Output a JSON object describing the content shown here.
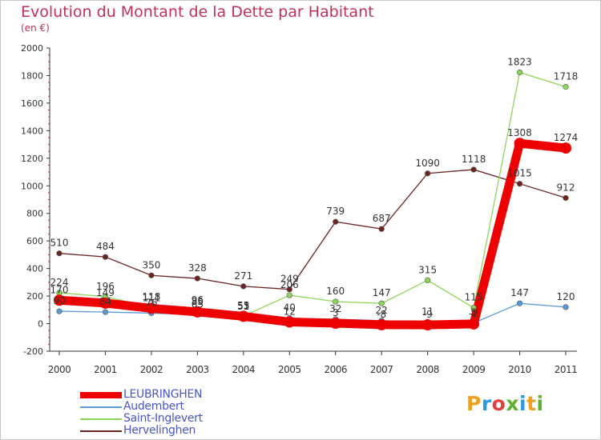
{
  "title": "Evolution du Montant de la Dette par Habitant",
  "subtitle": "(en €)",
  "logo_text": "Proxiti",
  "logo_colors": [
    "#f0a020",
    "#2a9be0",
    "#e04040",
    "#60b030",
    "#2a9be0",
    "#f0a020",
    "#60b030"
  ],
  "chart_data": {
    "type": "line",
    "x": [
      "2000",
      "2001",
      "2002",
      "2003",
      "2004",
      "2005",
      "2006",
      "2007",
      "2008",
      "2009",
      "2010",
      "2011"
    ],
    "ylim": [
      -200,
      2000
    ],
    "yticks": [
      "-200",
      "0",
      "200",
      "400",
      "600",
      "800",
      "1000",
      "1200",
      "1400",
      "1600",
      "1800",
      "2000"
    ],
    "legend_position": "bottom-left",
    "series": [
      {
        "name": "LEUBRINGHEN",
        "color": "#ee0000",
        "values": [
          170,
          149,
          111,
          85,
          53,
          12,
          3,
          -8,
          -9,
          -2,
          1308,
          1274
        ],
        "labels": [
          "170",
          "149",
          "111",
          "85",
          "53",
          "12",
          "3",
          "-8",
          "-9",
          "-2",
          "1308",
          "1274"
        ],
        "emphasis": true
      },
      {
        "name": "Audembert",
        "color": "#5b9bd5",
        "values": [
          90,
          84,
          76,
          65,
          51,
          40,
          32,
          22,
          11,
          5,
          147,
          120
        ],
        "labels": [
          "90",
          "84",
          "76",
          "65",
          "51",
          "40",
          "32",
          "22",
          "11",
          "5",
          "147",
          "120"
        ]
      },
      {
        "name": "Saint-Inglevert",
        "color": "#8ed45a",
        "values": [
          224,
          196,
          118,
          96,
          55,
          206,
          160,
          147,
          315,
          115,
          1823,
          1718
        ],
        "labels": [
          "224",
          "196",
          "118",
          "96",
          "55",
          "206",
          "160",
          "147",
          "315",
          "115",
          "1823",
          "1718"
        ]
      },
      {
        "name": "Hervelinghen",
        "color": "#6b2424",
        "values": [
          510,
          484,
          350,
          328,
          271,
          249,
          739,
          687,
          1090,
          1118,
          1015,
          912
        ],
        "labels": [
          "510",
          "484",
          "350",
          "328",
          "271",
          "249",
          "739",
          "687",
          "1090",
          "1118",
          "1015",
          "912"
        ]
      }
    ],
    "grid": false
  }
}
